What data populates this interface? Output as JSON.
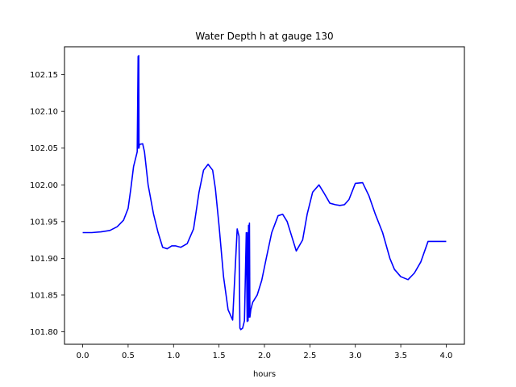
{
  "chart_data": {
    "type": "line",
    "title": "Water Depth h at gauge 130",
    "xlabel": "hours",
    "ylabel": "",
    "xlim": [
      -0.2,
      4.2
    ],
    "ylim": [
      101.783,
      102.188
    ],
    "grid": false,
    "legend": "none",
    "x_ticks": [
      0.0,
      0.5,
      1.0,
      1.5,
      2.0,
      2.5,
      3.0,
      3.5,
      4.0
    ],
    "x_tick_labels": [
      "0.0",
      "0.5",
      "1.0",
      "1.5",
      "2.0",
      "2.5",
      "3.0",
      "3.5",
      "4.0"
    ],
    "y_ticks": [
      101.8,
      101.85,
      101.9,
      101.95,
      102.0,
      102.05,
      102.1,
      102.15
    ],
    "y_tick_labels": [
      "101.80",
      "101.85",
      "101.90",
      "101.95",
      "102.00",
      "102.05",
      "102.10",
      "102.15"
    ],
    "series": [
      {
        "color": "#0000ff",
        "x": [
          0.0,
          0.1,
          0.2,
          0.3,
          0.38,
          0.45,
          0.5,
          0.53,
          0.56,
          0.6,
          0.61,
          0.613,
          0.617,
          0.62,
          0.625,
          0.66,
          0.68,
          0.72,
          0.78,
          0.83,
          0.88,
          0.93,
          0.98,
          1.02,
          1.08,
          1.15,
          1.22,
          1.28,
          1.33,
          1.38,
          1.43,
          1.46,
          1.5,
          1.55,
          1.6,
          1.65,
          1.7,
          1.72,
          1.73,
          1.74,
          1.76,
          1.78,
          1.8,
          1.81,
          1.815,
          1.82,
          1.825,
          1.83,
          1.835,
          1.84,
          1.845,
          1.85,
          1.87,
          1.92,
          1.97,
          2.02,
          2.08,
          2.15,
          2.2,
          2.25,
          2.3,
          2.35,
          2.42,
          2.47,
          2.53,
          2.6,
          2.65,
          2.72,
          2.78,
          2.83,
          2.88,
          2.93,
          3.0,
          3.08,
          3.15,
          3.22,
          3.3,
          3.38,
          3.43,
          3.5,
          3.58,
          3.65,
          3.72,
          3.8,
          3.85,
          3.9,
          3.95,
          4.0
        ],
        "y": [
          101.935,
          101.935,
          101.936,
          101.938,
          101.943,
          101.952,
          101.968,
          101.995,
          102.025,
          102.045,
          102.175,
          102.05,
          102.176,
          102.05,
          102.055,
          102.056,
          102.045,
          102.0,
          101.96,
          101.935,
          101.915,
          101.913,
          101.917,
          101.917,
          101.915,
          101.92,
          101.94,
          101.99,
          102.02,
          102.028,
          102.02,
          101.995,
          101.945,
          101.875,
          101.83,
          101.816,
          101.94,
          101.93,
          101.805,
          101.803,
          101.805,
          101.815,
          101.935,
          101.814,
          101.935,
          101.815,
          101.945,
          101.82,
          101.948,
          101.82,
          101.825,
          101.83,
          101.84,
          101.85,
          101.87,
          101.9,
          101.935,
          101.958,
          101.96,
          101.95,
          101.93,
          101.91,
          101.925,
          101.96,
          101.99,
          102.0,
          101.99,
          101.975,
          101.973,
          101.972,
          101.973,
          101.98,
          102.002,
          102.003,
          101.985,
          101.96,
          101.935,
          101.9,
          101.885,
          101.875,
          101.871,
          101.88,
          101.895,
          101.923,
          101.923,
          101.923,
          101.923,
          101.923
        ]
      }
    ]
  }
}
